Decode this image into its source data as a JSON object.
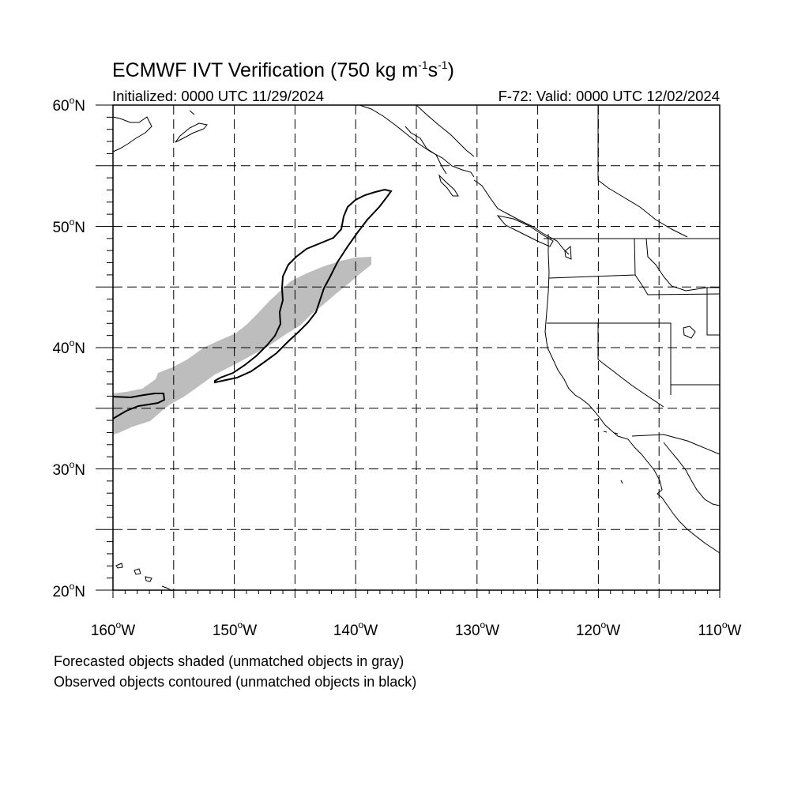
{
  "title": {
    "main": "ECMWF IVT Verification (750 kg m",
    "exp1": "-1",
    "mid": "s",
    "exp2": "-1",
    "close": ")"
  },
  "subtitle_left": "Initialized: 0000 UTC 11/29/2024",
  "subtitle_right": "F-72: Valid: 0000 UTC 12/02/2024",
  "lat_labels": [
    {
      "num": "60",
      "deg": "o",
      "hemi": "N"
    },
    {
      "num": "50",
      "deg": "o",
      "hemi": "N"
    },
    {
      "num": "40",
      "deg": "o",
      "hemi": "N"
    },
    {
      "num": "30",
      "deg": "o",
      "hemi": "N"
    },
    {
      "num": "20",
      "deg": "o",
      "hemi": "N"
    }
  ],
  "lon_labels": [
    {
      "num": "160",
      "deg": "o",
      "hemi": "W"
    },
    {
      "num": "150",
      "deg": "o",
      "hemi": "W"
    },
    {
      "num": "140",
      "deg": "o",
      "hemi": "W"
    },
    {
      "num": "130",
      "deg": "o",
      "hemi": "W"
    },
    {
      "num": "120",
      "deg": "o",
      "hemi": "W"
    },
    {
      "num": "110",
      "deg": "o",
      "hemi": "W"
    }
  ],
  "notes": [
    "Forecasted objects shaded (unmatched objects in gray)",
    "Observed objects contoured (unmatched objects in black)"
  ],
  "map": {
    "lon_range": [
      -160,
      -110
    ],
    "lat_range": [
      20,
      60
    ],
    "grid_interval_deg": 5,
    "grid_style": "dashed",
    "forecast_fill_color": "#bdbdbd",
    "observed_line_color": "#000000"
  }
}
